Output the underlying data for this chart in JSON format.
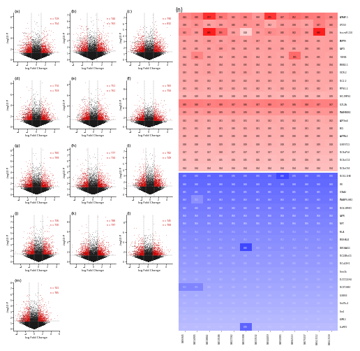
{
  "volcano_panels": [
    "(a)",
    "(b)",
    "(c)",
    "(d)",
    "(e)",
    "(f)",
    "(g)",
    "(h)",
    "(i)",
    "(j)",
    "(k)",
    "(l)",
    "(m)"
  ],
  "heatmap_title": "(n)",
  "up_values": [
    [
      0.44,
      0.49,
      0.77,
      0.5,
      0.42,
      0.46,
      0.38,
      0.75,
      0.47,
      0.52,
      0.49,
      0.48,
      0.45
    ],
    [
      0.38,
      0.41,
      0.35,
      0.38,
      0.4,
      0.41,
      0.4,
      0.32,
      0.38,
      0.38,
      0.35,
      0.47,
      0.4
    ],
    [
      0.42,
      0.38,
      0.85,
      0.55,
      0.36,
      0.18,
      0.38,
      0.42,
      0.4,
      0.42,
      0.38,
      0.9,
      0.36
    ],
    [
      0.35,
      0.35,
      0.38,
      0.36,
      0.38,
      0.36,
      0.37,
      0.35,
      0.36,
      0.38,
      0.36,
      0.35,
      0.36
    ],
    [
      0.35,
      0.35,
      0.36,
      0.38,
      0.36,
      0.35,
      0.35,
      0.36,
      0.36,
      0.35,
      0.36,
      0.35,
      0.36
    ],
    [
      0.34,
      0.46,
      0.36,
      0.34,
      0.35,
      0.36,
      0.34,
      0.35,
      0.34,
      0.55,
      0.35,
      0.35,
      0.34
    ],
    [
      0.34,
      0.34,
      0.35,
      0.34,
      0.34,
      0.35,
      0.34,
      0.34,
      0.34,
      0.35,
      0.34,
      0.34,
      0.34
    ],
    [
      0.33,
      0.34,
      0.35,
      0.33,
      0.34,
      0.35,
      0.33,
      0.34,
      0.33,
      0.35,
      0.33,
      0.33,
      0.33
    ],
    [
      0.32,
      0.33,
      0.32,
      0.33,
      0.33,
      0.32,
      0.33,
      0.33,
      0.32,
      0.33,
      0.33,
      0.32,
      0.33
    ],
    [
      0.31,
      0.32,
      0.31,
      0.32,
      0.32,
      0.31,
      0.32,
      0.31,
      0.32,
      0.32,
      0.31,
      0.32,
      0.31
    ],
    [
      0.28,
      0.29,
      0.29,
      0.28,
      0.28,
      0.29,
      0.28,
      0.29,
      0.28,
      0.29,
      0.28,
      0.28,
      0.29
    ],
    [
      0.49,
      0.48,
      0.47,
      0.48,
      0.47,
      0.46,
      0.47,
      0.48,
      0.47,
      0.46,
      0.48,
      0.47,
      0.47
    ],
    [
      0.39,
      0.38,
      0.4,
      0.39,
      0.39,
      0.39,
      0.38,
      0.39,
      0.39,
      0.39,
      0.38,
      0.39,
      0.39
    ],
    [
      0.32,
      0.32,
      0.31,
      0.31,
      0.32,
      0.31,
      0.31,
      0.32,
      0.31,
      0.32,
      0.31,
      0.31,
      0.32
    ],
    [
      0.31,
      0.31,
      0.3,
      0.31,
      0.3,
      0.31,
      0.31,
      0.3,
      0.31,
      0.3,
      0.31,
      0.3,
      0.3
    ],
    [
      0.3,
      0.3,
      0.3,
      0.3,
      0.3,
      0.3,
      0.3,
      0.3,
      0.3,
      0.3,
      0.3,
      0.3,
      0.3
    ],
    [
      0.28,
      0.28,
      0.28,
      0.29,
      0.28,
      0.29,
      0.28,
      0.29,
      0.28,
      0.29,
      0.28,
      0.29,
      0.28
    ],
    [
      0.27,
      0.27,
      0.27,
      0.28,
      0.27,
      0.27,
      0.27,
      0.27,
      0.27,
      0.27,
      0.27,
      0.27,
      0.27
    ],
    [
      0.25,
      0.26,
      0.26,
      0.25,
      0.26,
      0.25,
      0.26,
      0.25,
      0.26,
      0.25,
      0.26,
      0.25,
      0.25
    ],
    [
      0.24,
      0.24,
      0.24,
      0.24,
      0.24,
      0.24,
      0.24,
      0.24,
      0.24,
      0.24,
      0.24,
      0.24,
      0.24
    ]
  ],
  "down_values": [
    [
      0.7,
      0.7,
      0.7,
      0.7,
      0.7,
      0.7,
      0.7,
      0.7,
      0.9,
      0.7,
      0.7,
      0.7,
      0.7
    ],
    [
      0.68,
      0.68,
      0.68,
      0.68,
      0.68,
      0.68,
      0.68,
      0.68,
      0.68,
      0.68,
      0.68,
      0.68,
      0.68
    ],
    [
      0.65,
      0.65,
      0.65,
      0.65,
      0.65,
      0.65,
      0.65,
      0.65,
      0.65,
      0.65,
      0.65,
      0.65,
      0.65
    ],
    [
      0.63,
      0.5,
      0.63,
      0.63,
      0.63,
      0.63,
      0.63,
      0.63,
      0.63,
      0.63,
      0.63,
      0.63,
      0.63
    ],
    [
      0.6,
      0.6,
      0.6,
      0.6,
      0.6,
      0.6,
      0.6,
      0.6,
      0.6,
      0.6,
      0.6,
      0.6,
      0.6
    ],
    [
      0.58,
      0.58,
      0.58,
      0.58,
      0.58,
      0.58,
      0.58,
      0.58,
      0.58,
      0.58,
      0.58,
      0.58,
      0.58
    ],
    [
      0.56,
      0.56,
      0.56,
      0.56,
      0.56,
      0.56,
      0.56,
      0.56,
      0.56,
      0.56,
      0.56,
      0.56,
      0.56
    ],
    [
      0.54,
      0.54,
      0.54,
      0.54,
      0.54,
      0.54,
      0.54,
      0.54,
      0.54,
      0.54,
      0.54,
      0.54,
      0.54
    ],
    [
      0.52,
      0.52,
      0.52,
      0.52,
      0.52,
      0.52,
      0.52,
      0.52,
      0.52,
      0.52,
      0.52,
      0.52,
      0.52
    ],
    [
      0.5,
      0.5,
      0.5,
      0.5,
      0.5,
      0.9,
      0.5,
      0.5,
      0.5,
      0.5,
      0.5,
      0.5,
      0.5
    ],
    [
      0.48,
      0.48,
      0.48,
      0.48,
      0.48,
      0.48,
      0.48,
      0.48,
      0.48,
      0.48,
      0.48,
      0.48,
      0.48
    ],
    [
      0.46,
      0.46,
      0.46,
      0.46,
      0.46,
      0.46,
      0.46,
      0.46,
      0.46,
      0.46,
      0.46,
      0.46,
      0.46
    ],
    [
      0.44,
      0.44,
      0.44,
      0.44,
      0.44,
      0.44,
      0.44,
      0.44,
      0.44,
      0.44,
      0.44,
      0.44,
      0.44
    ],
    [
      0.42,
      0.42,
      0.42,
      0.42,
      0.42,
      0.42,
      0.42,
      0.42,
      0.42,
      0.42,
      0.42,
      0.42,
      0.42
    ],
    [
      0.55,
      0.55,
      0.4,
      0.4,
      0.4,
      0.4,
      0.4,
      0.4,
      0.4,
      0.4,
      0.4,
      0.4,
      0.4
    ],
    [
      0.38,
      0.38,
      0.38,
      0.38,
      0.38,
      0.38,
      0.38,
      0.38,
      0.38,
      0.38,
      0.38,
      0.38,
      0.38
    ],
    [
      0.36,
      0.36,
      0.36,
      0.36,
      0.36,
      0.36,
      0.36,
      0.36,
      0.36,
      0.36,
      0.36,
      0.36,
      0.36
    ],
    [
      0.34,
      0.34,
      0.34,
      0.34,
      0.34,
      0.34,
      0.34,
      0.34,
      0.34,
      0.34,
      0.34,
      0.34,
      0.34
    ],
    [
      0.32,
      0.32,
      0.32,
      0.32,
      0.32,
      0.32,
      0.32,
      0.32,
      0.32,
      0.32,
      0.32,
      0.32,
      0.32
    ],
    [
      0.3,
      0.3,
      0.3,
      0.3,
      0.3,
      0.7,
      0.3,
      0.3,
      0.3,
      0.3,
      0.3,
      0.3,
      0.3
    ]
  ],
  "row_labels_up": [
    "APMAP-1",
    "GPCS3",
    "hsa-miR-210",
    "PAPPM",
    "CAPG",
    "TGFB4",
    "BREB2-1",
    "CXCR-2",
    "SLC2-2",
    "PTPSG-2",
    "HEC-IMPS2",
    "GLTL2A",
    "RNAMBEB2",
    "AOP3to4",
    "FBG",
    "AUPPA-4",
    "CLBEST11",
    "SLC4uP14",
    "SLC4uCC4",
    "SLC4uCX4"
  ],
  "row_labels_down": [
    "SLCE2-1HB",
    "CRI",
    "CCNA2",
    "RNABPS-HB2",
    "SLO4-HMBO",
    "CAPR",
    "MIRT",
    "KcLA",
    "PDGHA14",
    "OGF2AA11",
    "SLC24Bst11",
    "SLCu22H1",
    "ChrisTo",
    "DLCCC22H4",
    "SLCET-HB3",
    "CLBBS3",
    "Chr2To-4",
    "Chr4",
    "LGML1",
    "CLaRP2"
  ],
  "col_labels": [
    "GSE6945",
    "GSE14905",
    "GSE18842",
    "GSE19188",
    "GSE27262",
    "GSE31908",
    "GSE33532",
    "GSE44459",
    "GSE50081",
    "GSE62113",
    "GSE75037",
    "GSE4-3112",
    "GSE4-3118"
  ]
}
